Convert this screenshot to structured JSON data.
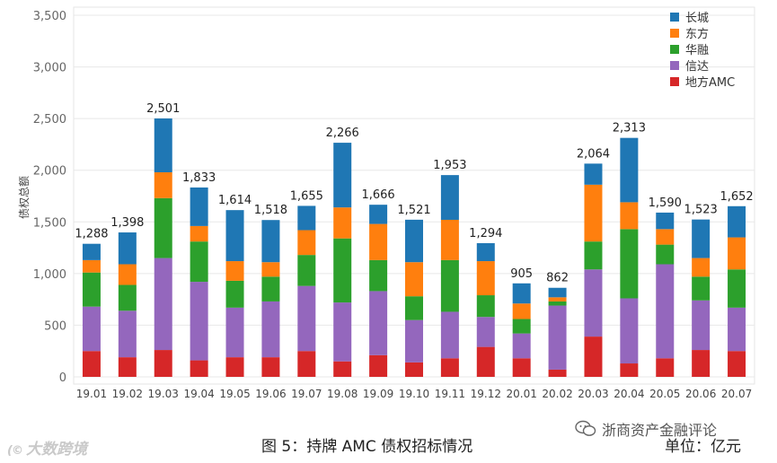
{
  "chart_data": {
    "type": "bar",
    "stacked": true,
    "title": "",
    "xlabel": "",
    "ylabel": "债权总额",
    "ylim": [
      0,
      3500
    ],
    "yticks": [
      0,
      500,
      1000,
      1500,
      2000,
      2500,
      3000,
      3500
    ],
    "ytick_labels": [
      "0",
      "500",
      "1,000",
      "1,500",
      "2,000",
      "2,500",
      "3,000",
      "3,500"
    ],
    "grid": true,
    "legend_position": "top-right",
    "categories": [
      "19.01",
      "19.02",
      "19.03",
      "19.04",
      "19.05",
      "19.06",
      "19.07",
      "19.08",
      "19.09",
      "19.10",
      "19.11",
      "19.12",
      "20.01",
      "20.02",
      "20.03",
      "20.04",
      "20.05",
      "20.06",
      "20.07"
    ],
    "series": [
      {
        "name": "地方AMC",
        "color": "#d62728",
        "values": [
          250,
          190,
          260,
          160,
          190,
          190,
          250,
          150,
          210,
          140,
          180,
          290,
          180,
          70,
          390,
          130,
          180,
          260,
          250
        ]
      },
      {
        "name": "信达",
        "color": "#9467bd",
        "values": [
          430,
          450,
          890,
          760,
          480,
          540,
          630,
          570,
          620,
          410,
          450,
          290,
          240,
          620,
          650,
          630,
          910,
          480,
          420
        ]
      },
      {
        "name": "华融",
        "color": "#2ca02c",
        "values": [
          330,
          250,
          580,
          390,
          260,
          240,
          300,
          620,
          300,
          230,
          500,
          210,
          140,
          40,
          270,
          670,
          190,
          230,
          370
        ]
      },
      {
        "name": "东方",
        "color": "#ff7f0e",
        "values": [
          120,
          200,
          250,
          150,
          190,
          140,
          240,
          300,
          350,
          330,
          390,
          330,
          150,
          40,
          550,
          260,
          150,
          180,
          310
        ]
      },
      {
        "name": "长城",
        "color": "#1f77b4",
        "values": [
          158,
          308,
          521,
          373,
          494,
          408,
          235,
          626,
          186,
          411,
          433,
          174,
          195,
          92,
          204,
          623,
          160,
          373,
          302
        ]
      }
    ],
    "totals": [
      1288,
      1398,
      2501,
      1833,
      1614,
      1518,
      1655,
      2266,
      1666,
      1521,
      1953,
      1294,
      905,
      862,
      2064,
      2313,
      1590,
      1523,
      1652
    ],
    "total_labels": [
      "1,288",
      "1,398",
      "2,501",
      "1,833",
      "1,614",
      "1,518",
      "1,655",
      "2,266",
      "1,666",
      "1,521",
      "1,953",
      "1,294",
      "905",
      "862",
      "2,064",
      "2,313",
      "1,590",
      "1,523",
      "1,652"
    ]
  },
  "caption": "图 5：持牌 AMC 债权招标情况",
  "unit": "单位：亿元",
  "watermarks": {
    "left": "大数跨境",
    "right": "浙商资产金融评论"
  }
}
